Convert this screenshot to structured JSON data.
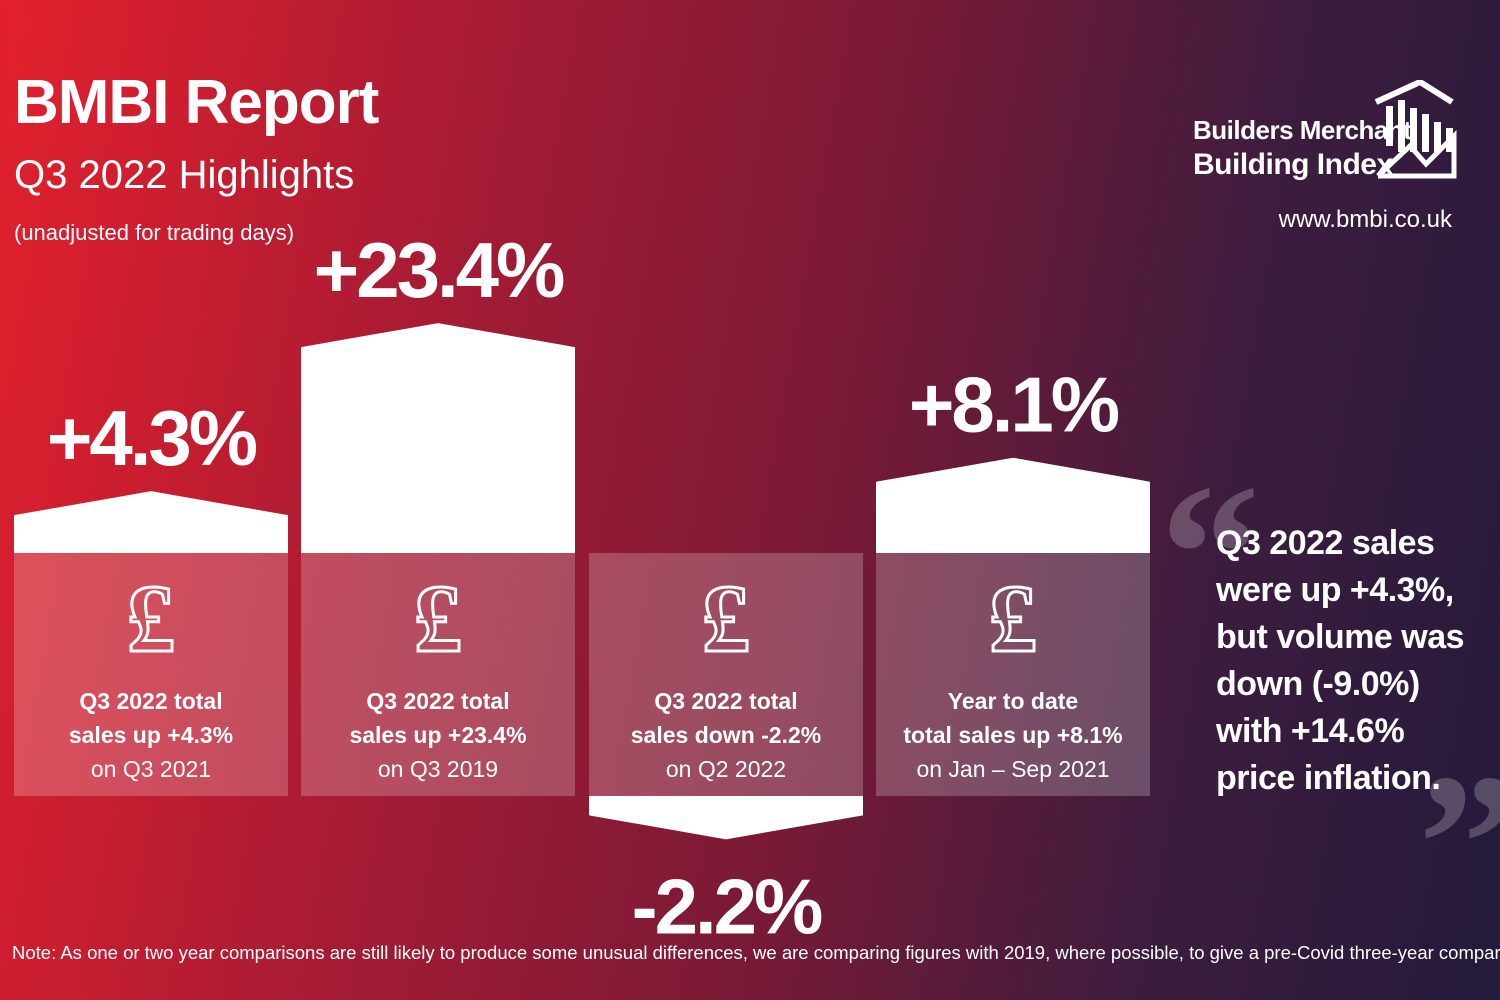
{
  "header": {
    "title": "BMBI Report",
    "subtitle": "Q3 2022 Highlights",
    "note": "(unadjusted for trading days)"
  },
  "brand": {
    "line1": "Builders Merchant",
    "line2": "Building Index",
    "url": "www.bmbi.co.uk",
    "logo_icon": "house-bars-icon"
  },
  "chart_data": {
    "type": "bar",
    "title": "Q3 2022 Highlights",
    "categories": [
      "Q3 2022 vs Q3 2021",
      "Q3 2022 vs Q3 2019",
      "Q3 2022 vs Q2 2022",
      "YTD vs Jan – Sep 2021"
    ],
    "values": [
      4.3,
      23.4,
      -2.2,
      8.1
    ],
    "unit": "%",
    "bars": [
      {
        "value": 4.3,
        "label": "+4.3%",
        "caption_bold": [
          "Q3 2022 total",
          "sales up +4.3%"
        ],
        "caption": "on Q3 2021"
      },
      {
        "value": 23.4,
        "label": "+23.4%",
        "caption_bold": [
          "Q3 2022 total",
          "sales up +23.4%"
        ],
        "caption": "on Q3 2019"
      },
      {
        "value": -2.2,
        "label": "-2.2%",
        "caption_bold": [
          "Q3 2022 total",
          "sales down -2.2%"
        ],
        "caption": "on Q2 2022"
      },
      {
        "value": 8.1,
        "label": "+8.1%",
        "caption_bold": [
          "Year to date",
          "total sales up +8.1%"
        ],
        "caption": "on Jan – Sep 2021"
      }
    ],
    "icon": "pound-sign-icon"
  },
  "quote": {
    "text": "Q3 2022 sales were up +4.3%, but volume was down (-9.0%) with +14.6% price inflation.",
    "open_mark": "“",
    "close_mark": "”"
  },
  "footer": {
    "note": "Note: As one or two year comparisons are still likely to produce some unusual differences, we are comparing figures with 2019, where possible, to give a pre-Covid three-year comparison"
  }
}
